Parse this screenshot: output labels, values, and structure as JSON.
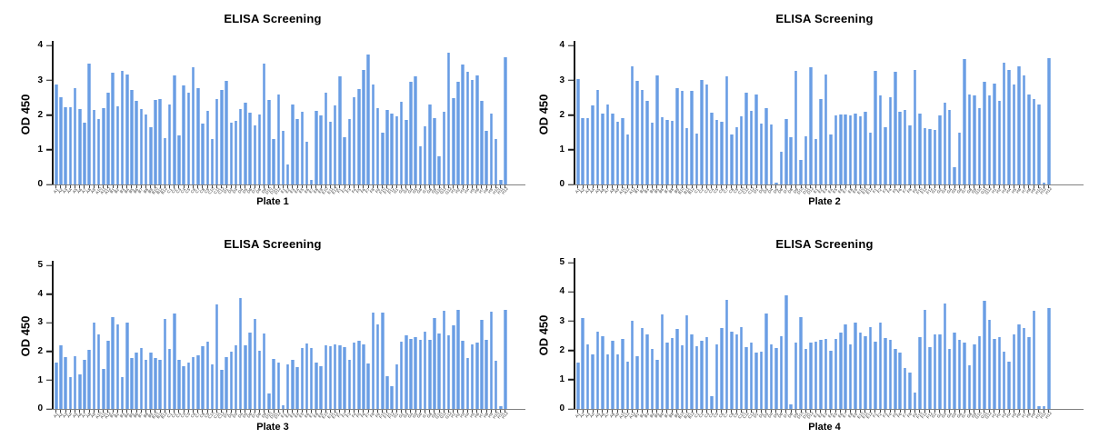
{
  "colors": {
    "background": "#ffffff",
    "bar_fill": "#679BE3",
    "bar_edge": "#A9C8F0",
    "axis": "#1a1a1a",
    "baseline": "#808080",
    "x_tick": "#444444",
    "text": "#000000"
  },
  "chart_data": [
    {
      "type": "bar",
      "title": "ELISA Screening",
      "ylabel": "OD 450",
      "xlabel": "Plate 1",
      "ylim": [
        0,
        4
      ],
      "yticks": [
        0,
        1,
        2,
        3,
        4
      ],
      "grid": false,
      "legend": null,
      "categories": [
        "A1",
        "A2",
        "A3",
        "A4",
        "A5",
        "A6",
        "A7",
        "A8",
        "A9",
        "A10",
        "A11",
        "A12",
        "B1",
        "B2",
        "B3",
        "B4",
        "B5",
        "B6",
        "B7",
        "B8",
        "B9",
        "B10",
        "B11",
        "B12",
        "C1",
        "C2",
        "C3",
        "C4",
        "C5",
        "C6",
        "C7",
        "C8",
        "C9",
        "C10",
        "C11",
        "C12",
        "D1",
        "D2",
        "D3",
        "D4",
        "D5",
        "D6",
        "D7",
        "D8",
        "D9",
        "D10",
        "D11",
        "D12",
        "E1",
        "E2",
        "E3",
        "E4",
        "E5",
        "E6",
        "E7",
        "E8",
        "E9",
        "E10",
        "E11",
        "E12",
        "F1",
        "F2",
        "F3",
        "F4",
        "F5",
        "F6",
        "F7",
        "F8",
        "F9",
        "F10",
        "F11",
        "F12",
        "G1",
        "G2",
        "G3",
        "G4",
        "G5",
        "G6",
        "G7",
        "G8",
        "G9",
        "G10",
        "G11",
        "G12",
        "H1",
        "H2",
        "H3",
        "H4",
        "H5",
        "H6",
        "H7",
        "H8",
        "H9",
        "H10",
        "H11",
        "H12"
      ],
      "values": [
        2.87,
        2.5,
        2.21,
        2.21,
        2.76,
        2.17,
        1.78,
        3.49,
        2.14,
        1.89,
        2.2,
        2.63,
        3.21,
        2.24,
        3.28,
        3.16,
        2.73,
        2.41,
        2.18,
        2.01,
        1.65,
        2.42,
        2.46,
        1.33,
        2.29,
        3.13,
        1.4,
        2.86,
        2.65,
        3.37,
        2.76,
        1.74,
        2.11,
        1.32,
        2.47,
        2.73,
        2.98,
        1.77,
        1.82,
        2.16,
        2.36,
        2.06,
        1.69,
        2.01,
        3.48,
        2.42,
        1.32,
        2.58,
        1.55,
        0.57,
        2.3,
        1.88,
        2.1,
        1.22,
        0.13,
        2.12,
        1.98,
        2.65,
        1.8,
        2.28,
        3.12,
        1.35,
        1.88,
        2.5,
        2.75,
        3.3,
        3.73,
        2.88,
        2.2,
        1.5,
        2.15,
        2.05,
        1.95,
        2.38,
        1.85,
        2.95,
        3.1,
        1.1,
        1.68,
        2.3,
        1.9,
        0.82,
        2.1,
        3.78,
        2.48,
        2.95,
        3.45,
        3.25,
        3.0,
        3.15,
        2.4,
        1.55,
        2.05,
        1.32,
        0.12,
        3.65
      ]
    },
    {
      "type": "bar",
      "title": "ELISA Screening",
      "ylabel": "OD 450",
      "xlabel": "Plate 2",
      "ylim": [
        0,
        4
      ],
      "yticks": [
        0,
        1,
        2,
        3,
        4
      ],
      "grid": false,
      "legend": null,
      "categories": [
        "A1",
        "A2",
        "A3",
        "A4",
        "A5",
        "A6",
        "A7",
        "A8",
        "A9",
        "A10",
        "A11",
        "A12",
        "B1",
        "B2",
        "B3",
        "B4",
        "B5",
        "B6",
        "B7",
        "B8",
        "B9",
        "B10",
        "B11",
        "B12",
        "C1",
        "C2",
        "C3",
        "C4",
        "C5",
        "C6",
        "C7",
        "C8",
        "C9",
        "C10",
        "C11",
        "C12",
        "D1",
        "D2",
        "D3",
        "D4",
        "D5",
        "D6",
        "D7",
        "D8",
        "D9",
        "D10",
        "D11",
        "D12",
        "E1",
        "E2",
        "E3",
        "E4",
        "E5",
        "E6",
        "E7",
        "E8",
        "E9",
        "E10",
        "E11",
        "E12",
        "F1",
        "F2",
        "F3",
        "F4",
        "F5",
        "F6",
        "F7",
        "F8",
        "F9",
        "F10",
        "F11",
        "F12",
        "G1",
        "G2",
        "G3",
        "G4",
        "G5",
        "G6",
        "G7",
        "G8",
        "G9",
        "G10",
        "G11",
        "G12",
        "H1",
        "H2",
        "H3",
        "H4",
        "H5",
        "H6",
        "H7",
        "H8",
        "H9",
        "H10",
        "H11",
        "H12"
      ],
      "values": [
        3.03,
        1.92,
        1.92,
        2.28,
        2.71,
        2.03,
        2.3,
        2.03,
        1.8,
        1.91,
        1.44,
        3.4,
        2.98,
        2.72,
        2.4,
        1.77,
        3.14,
        1.93,
        1.86,
        1.82,
        2.76,
        2.7,
        1.62,
        2.7,
        1.46,
        3.02,
        2.87,
        2.06,
        1.86,
        1.8,
        3.12,
        1.45,
        1.64,
        1.96,
        2.63,
        2.13,
        2.6,
        1.75,
        2.19,
        1.73,
        0.06,
        0.93,
        1.89,
        1.37,
        3.26,
        0.71,
        1.39,
        3.38,
        1.3,
        2.45,
        3.17,
        1.43,
        1.99,
        2.02,
        2.02,
        2.0,
        2.05,
        1.95,
        2.1,
        1.5,
        3.28,
        2.55,
        1.65,
        2.5,
        3.25,
        2.1,
        2.15,
        1.7,
        3.3,
        2.05,
        1.62,
        1.6,
        1.58,
        2.0,
        2.35,
        2.15,
        0.5,
        1.48,
        3.62,
        2.6,
        2.55,
        2.2,
        2.95,
        2.55,
        2.9,
        2.4,
        3.5,
        3.3,
        2.88,
        3.4,
        3.15,
        2.6,
        2.45,
        2.3,
        0.05,
        3.63
      ]
    },
    {
      "type": "bar",
      "title": "ELISA Screening",
      "ylabel": "OD 450",
      "xlabel": "Plate 3",
      "ylim": [
        0,
        5
      ],
      "yticks": [
        0,
        1,
        2,
        3,
        4,
        5
      ],
      "grid": false,
      "legend": null,
      "categories": [
        "A1",
        "A2",
        "A3",
        "A4",
        "A5",
        "A6",
        "A7",
        "A8",
        "A9",
        "A10",
        "A11",
        "A12",
        "B1",
        "B2",
        "B3",
        "B4",
        "B5",
        "B6",
        "B7",
        "B8",
        "B9",
        "B10",
        "B11",
        "B12",
        "C1",
        "C2",
        "C3",
        "C4",
        "C5",
        "C6",
        "C7",
        "C8",
        "C9",
        "C10",
        "C11",
        "C12",
        "D1",
        "D2",
        "D3",
        "D4",
        "D5",
        "D6",
        "D7",
        "D8",
        "D9",
        "D10",
        "D11",
        "D12",
        "E1",
        "E2",
        "E3",
        "E4",
        "E5",
        "E6",
        "E7",
        "E8",
        "E9",
        "E10",
        "E11",
        "E12",
        "F1",
        "F2",
        "F3",
        "F4",
        "F5",
        "F6",
        "F7",
        "F8",
        "F9",
        "F10",
        "F11",
        "F12",
        "G1",
        "G2",
        "G3",
        "G4",
        "G5",
        "G6",
        "G7",
        "G8",
        "G9",
        "G10",
        "G11",
        "G12",
        "H1",
        "H2",
        "H3",
        "H4",
        "H5",
        "H6",
        "H7",
        "H8",
        "H9",
        "H10",
        "H11",
        "H12"
      ],
      "values": [
        1.62,
        2.22,
        1.8,
        1.1,
        1.85,
        1.21,
        1.7,
        2.05,
        3.0,
        2.6,
        1.38,
        2.38,
        3.19,
        2.93,
        1.12,
        3.02,
        1.78,
        1.97,
        2.12,
        1.72,
        1.97,
        1.76,
        1.71,
        3.13,
        2.08,
        3.33,
        1.71,
        1.48,
        1.62,
        1.8,
        1.88,
        2.17,
        2.35,
        1.55,
        3.65,
        1.35,
        1.82,
        2.0,
        2.2,
        3.85,
        2.22,
        2.67,
        3.13,
        2.04,
        2.63,
        0.55,
        1.75,
        1.62,
        0.12,
        1.55,
        1.72,
        1.45,
        2.12,
        2.28,
        2.12,
        1.62,
        1.48,
        2.22,
        2.18,
        2.25,
        2.2,
        2.15,
        1.72,
        2.3,
        2.38,
        2.25,
        1.58,
        3.35,
        2.95,
        3.35,
        1.15,
        0.78,
        1.55,
        2.35,
        2.55,
        2.45,
        2.5,
        2.42,
        2.68,
        2.4,
        3.18,
        2.62,
        3.42,
        2.55,
        2.9,
        3.45,
        2.38,
        1.78,
        2.25,
        2.32,
        3.1,
        2.42,
        3.38,
        1.68,
        0.1,
        3.45
      ]
    },
    {
      "type": "bar",
      "title": "ELISA Screening",
      "ylabel": "OD 450",
      "xlabel": "Plate 4",
      "ylim": [
        0,
        5
      ],
      "yticks": [
        0,
        1,
        2,
        3,
        4,
        5
      ],
      "grid": false,
      "legend": null,
      "categories": [
        "A1",
        "A2",
        "A3",
        "A4",
        "A5",
        "A6",
        "A7",
        "A8",
        "A9",
        "A10",
        "A11",
        "A12",
        "B1",
        "B2",
        "B3",
        "B4",
        "B5",
        "B6",
        "B7",
        "B8",
        "B9",
        "B10",
        "B11",
        "B12",
        "C1",
        "C2",
        "C3",
        "C4",
        "C5",
        "C6",
        "C7",
        "C8",
        "C9",
        "C10",
        "C11",
        "C12",
        "D1",
        "D2",
        "D3",
        "D4",
        "D5",
        "D6",
        "D7",
        "D8",
        "D9",
        "D10",
        "D11",
        "D12",
        "E1",
        "E2",
        "E3",
        "E4",
        "E5",
        "E6",
        "E7",
        "E8",
        "E9",
        "E10",
        "E11",
        "E12",
        "F1",
        "F2",
        "F3",
        "F4",
        "F5",
        "F6",
        "F7",
        "F8",
        "F9",
        "F10",
        "F11",
        "F12",
        "G1",
        "G2",
        "G3",
        "G4",
        "G5",
        "G6",
        "G7",
        "G8",
        "G9",
        "G10",
        "G11",
        "G12",
        "H1",
        "H2",
        "H3",
        "H4",
        "H5",
        "H6",
        "H7",
        "H8",
        "H9",
        "H10",
        "H11",
        "H12"
      ],
      "values": [
        1.57,
        3.11,
        2.21,
        1.85,
        2.65,
        2.48,
        1.87,
        2.33,
        1.87,
        2.4,
        1.6,
        3.0,
        1.81,
        2.76,
        2.54,
        2.04,
        1.68,
        3.23,
        2.27,
        2.43,
        2.72,
        2.18,
        3.21,
        2.56,
        2.14,
        2.33,
        2.45,
        0.43,
        2.19,
        2.76,
        3.73,
        2.63,
        2.55,
        2.79,
        2.12,
        2.27,
        1.92,
        1.95,
        3.25,
        2.19,
        2.08,
        2.5,
        3.89,
        0.17,
        2.28,
        3.15,
        2.05,
        2.28,
        2.3,
        2.35,
        2.4,
        2.0,
        2.4,
        2.6,
        2.9,
        2.2,
        2.95,
        2.62,
        2.5,
        2.78,
        2.3,
        2.95,
        2.42,
        2.35,
        2.05,
        1.92,
        1.4,
        1.25,
        0.55,
        2.45,
        3.4,
        2.12,
        2.55,
        2.55,
        3.6,
        2.05,
        2.62,
        2.35,
        2.28,
        1.48,
        2.2,
        2.48,
        3.7,
        3.05,
        2.4,
        2.45,
        1.95,
        1.6,
        2.55,
        2.9,
        2.75,
        2.45,
        3.35,
        0.08,
        0.08,
        3.45
      ]
    }
  ]
}
